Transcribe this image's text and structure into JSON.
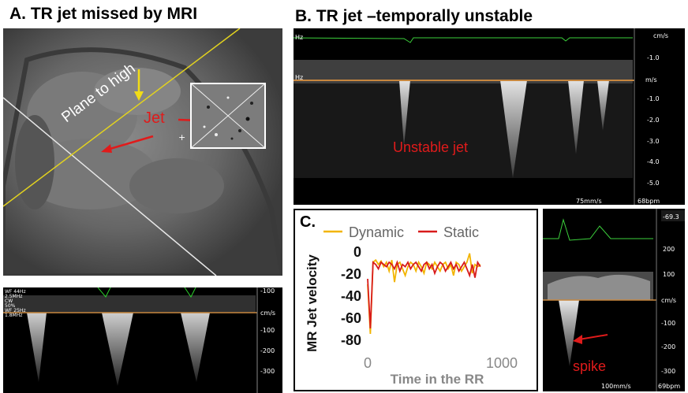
{
  "panel_a": {
    "title": "A. TR jet missed by MRI",
    "annotation_plane": "Plane to high",
    "annotation_jet": "Jet",
    "colors": {
      "plane_line": "#e2d21f",
      "arrow": "#e01b1b",
      "down_arrow": "#f2dc16"
    }
  },
  "panel_a_doppler": {
    "settings": [
      "WF 44Hz",
      "2.5MHz",
      "CW",
      "50%",
      "WF 25Hz",
      "1.8MHz"
    ],
    "axis_unit": "cm/s",
    "axis_ticks": [
      "-100",
      "-100",
      "-200",
      "-300"
    ]
  },
  "panel_b": {
    "title": "B. TR jet –temporally unstable",
    "annotation": "Unstable jet",
    "axis_unit_top": "cm/s",
    "axis_unit_mid": "m/s",
    "axis_ticks": [
      "-1.0",
      "-1.0",
      "-2.0",
      "-3.0",
      "-4.0",
      "-5.0"
    ],
    "sweep": "75mm/s",
    "heart_rate": "68bpm",
    "hz_labels": [
      "Hz",
      "Hz"
    ]
  },
  "panel_c": {
    "title": "C.",
    "colors": {
      "dynamic": "#f2b400",
      "static": "#d81b1b"
    }
  },
  "chart_data": {
    "type": "line",
    "xlabel": "Time in the RR",
    "ylabel": "MR Jet velocity",
    "xlim": [
      0,
      1000
    ],
    "ylim": [
      -80,
      0
    ],
    "xticks": [
      "0",
      "1000"
    ],
    "yticks": [
      "0",
      "-20",
      "-40",
      "-60",
      "-80"
    ],
    "legend": "top",
    "series": [
      {
        "name": "Dynamic",
        "color": "#f2b400",
        "x": [
          0,
          20,
          40,
          60,
          80,
          100,
          120,
          140,
          160,
          180,
          200,
          220,
          240,
          260,
          280,
          300,
          320,
          340,
          360,
          380,
          400,
          420,
          440,
          460,
          480,
          500,
          520,
          540,
          560,
          580,
          600,
          620,
          640,
          660,
          680,
          700,
          720,
          740,
          760,
          780,
          800,
          820,
          840
        ],
        "y": [
          -30,
          -75,
          -10,
          -8,
          -12,
          -9,
          -14,
          -10,
          -18,
          -8,
          -28,
          -12,
          -10,
          -16,
          -22,
          -14,
          -10,
          -12,
          -18,
          -10,
          -14,
          -20,
          -10,
          -12,
          -16,
          -10,
          -14,
          -18,
          -12,
          -10,
          -16,
          -12,
          -22,
          -10,
          -12,
          -18,
          -14,
          -10,
          -2,
          -20,
          -12,
          -14,
          -12
        ]
      },
      {
        "name": "Static",
        "color": "#d81b1b",
        "x": [
          0,
          20,
          40,
          60,
          80,
          100,
          120,
          140,
          160,
          180,
          200,
          220,
          240,
          260,
          280,
          300,
          320,
          340,
          360,
          380,
          400,
          420,
          440,
          460,
          480,
          500,
          520,
          540,
          560,
          580,
          600,
          620,
          640,
          660,
          680,
          700,
          720,
          740,
          760,
          780,
          800,
          820,
          840
        ],
        "y": [
          -25,
          -70,
          -10,
          -12,
          -16,
          -10,
          -12,
          -14,
          -10,
          -12,
          -16,
          -10,
          -18,
          -12,
          -14,
          -10,
          -16,
          -12,
          -10,
          -14,
          -18,
          -12,
          -10,
          -16,
          -12,
          -20,
          -14,
          -10,
          -12,
          -18,
          -14,
          -10,
          -16,
          -12,
          -18,
          -14,
          -10,
          -16,
          -22,
          -12,
          -24,
          -10,
          -14
        ]
      }
    ]
  },
  "panel_d": {
    "annotation": "spike",
    "axis_unit": "cm/s",
    "axis_ticks": [
      "200",
      "100",
      "-100",
      "-200",
      "-300"
    ],
    "top_readout": "-69.3",
    "sweep": "100mm/s",
    "heart_rate": "69bpm"
  }
}
